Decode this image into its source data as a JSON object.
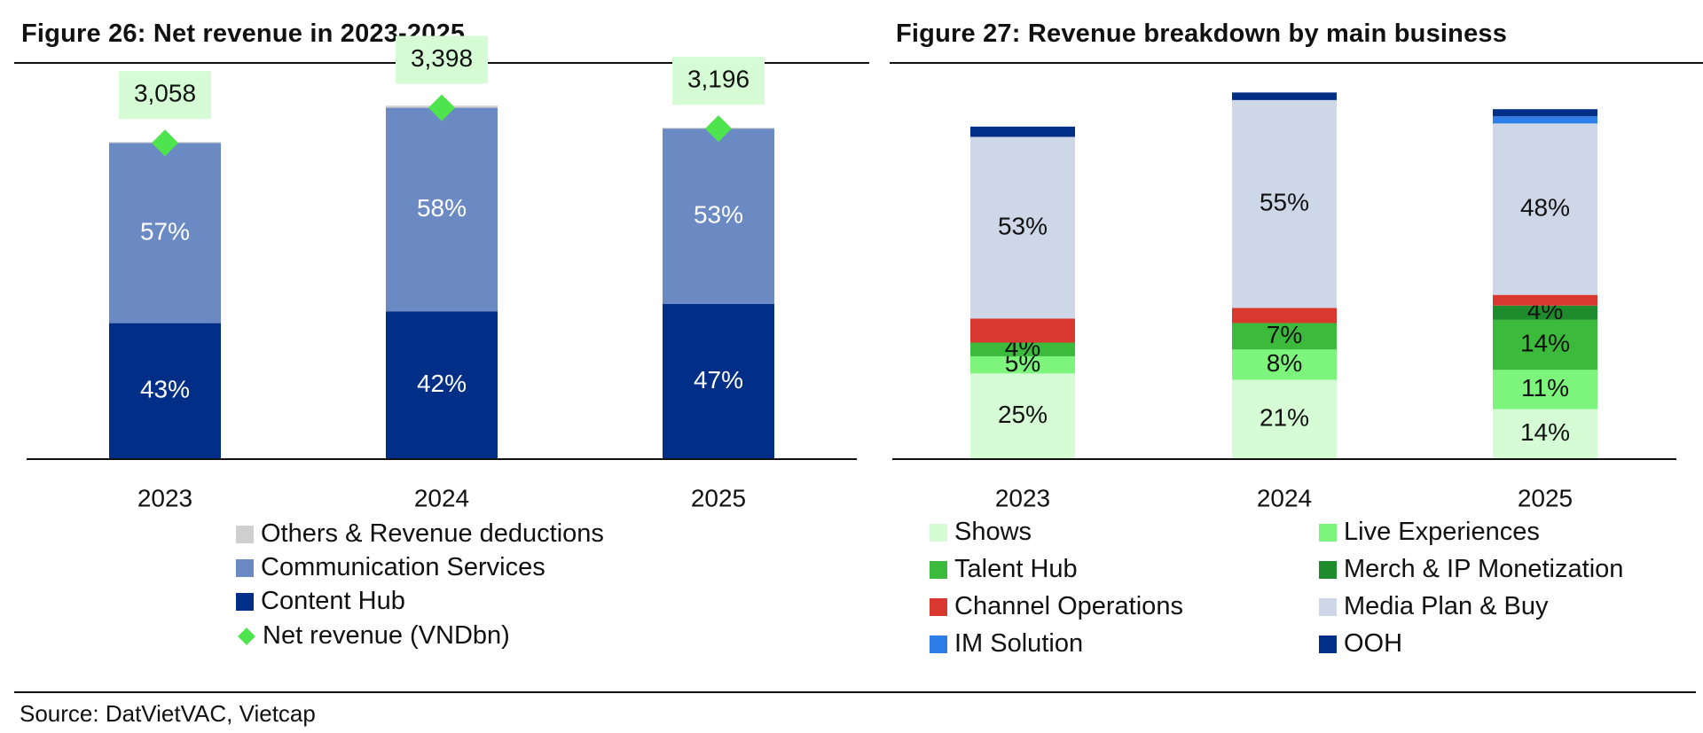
{
  "colors": {
    "others": "#cfcfcf",
    "comm": "#6b8ac4",
    "content": "#012e87",
    "net": "#4ee44e",
    "net_label_bg": "#d5fcd5",
    "shows": "#d5fcd5",
    "live": "#7df57d",
    "talent": "#3cba3c",
    "merch": "#1e8c2c",
    "channel": "#d9382e",
    "media": "#ced7e8",
    "im": "#2d7ee8",
    "ooh": "#012e87"
  },
  "figure26": {
    "title": "Figure 26: Net revenue in 2023-2025",
    "chart_data": {
      "type": "bar",
      "stacked": true,
      "categories": [
        "2023",
        "2024",
        "2025"
      ],
      "series": [
        {
          "name": "Content Hub",
          "key": "content",
          "values": [
            43,
            42,
            47
          ],
          "labels": [
            "43%",
            "42%",
            "47%"
          ]
        },
        {
          "name": "Communication Services",
          "key": "comm",
          "values": [
            57,
            58,
            53
          ],
          "labels": [
            "57%",
            "58%",
            "53%"
          ]
        },
        {
          "name": "Others & Revenue deductions",
          "key": "others",
          "values": [
            0.3,
            0.6,
            0.3
          ],
          "labels": [
            "",
            "",
            ""
          ]
        }
      ],
      "net_revenue": {
        "name": "Net revenue (VNDbn)",
        "values": [
          3058,
          3398,
          3196
        ],
        "labels": [
          "3,058",
          "3,398",
          "3,196"
        ]
      },
      "ylim": [
        0,
        3900
      ]
    },
    "legend": [
      "Others & Revenue deductions",
      "Communication Services",
      "Content Hub",
      "Net revenue (VNDbn)"
    ]
  },
  "figure27": {
    "title": "Figure 27: Revenue breakdown by main business",
    "chart_data": {
      "type": "bar",
      "stacked": true,
      "categories": [
        "2023",
        "2024",
        "2025"
      ],
      "totals_bn": [
        3058,
        3398,
        3196
      ],
      "series": [
        {
          "name": "Shows",
          "key": "shows",
          "values": [
            25,
            21,
            14
          ],
          "labels": [
            "25%",
            "21%",
            "14%"
          ]
        },
        {
          "name": "Live Experiences",
          "key": "live",
          "values": [
            5,
            8,
            11
          ],
          "labels": [
            "5%",
            "8%",
            "11%"
          ]
        },
        {
          "name": "Talent Hub",
          "key": "talent",
          "values": [
            4,
            7,
            14
          ],
          "labels": [
            "4%",
            "7%",
            "14%"
          ]
        },
        {
          "name": "Merch & IP Monetization",
          "key": "merch",
          "values": [
            0,
            0,
            4
          ],
          "labels": [
            "",
            "",
            "4%"
          ]
        },
        {
          "name": "Channel Operations",
          "key": "channel",
          "values": [
            7,
            4,
            3
          ],
          "labels": [
            "",
            "",
            ""
          ]
        },
        {
          "name": "Media Plan & Buy",
          "key": "media",
          "values": [
            53,
            55,
            48
          ],
          "labels": [
            "53%",
            "55%",
            "48%"
          ]
        },
        {
          "name": "IM Solution",
          "key": "im",
          "values": [
            0,
            0,
            2
          ],
          "labels": [
            "",
            "",
            ""
          ]
        },
        {
          "name": "OOH",
          "key": "ooh",
          "values": [
            3,
            2,
            2
          ],
          "labels": [
            "",
            "",
            ""
          ]
        }
      ]
    },
    "legend_left": [
      "Shows",
      "Talent Hub",
      "Channel Operations",
      "IM Solution"
    ],
    "legend_right": [
      "Live Experiences",
      "Merch & IP Monetization",
      "Media Plan & Buy",
      "OOH"
    ]
  },
  "source": "Source: DatVietVAC, Vietcap"
}
